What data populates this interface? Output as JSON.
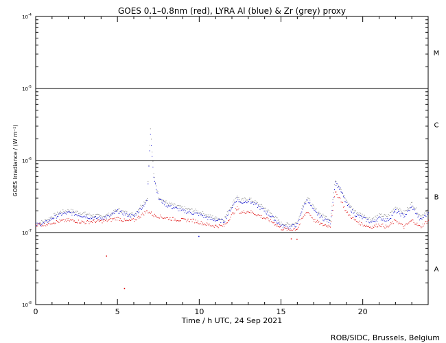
{
  "chart_data": {
    "type": "scatter",
    "title": "GOES 0.1–0.8nm (red), LYRA Al (blue) & Zr (grey) proxy",
    "xlabel": "Time / h UTC, 24 Sep 2021",
    "ylabel": "GOES Irradiance / (W m⁻²)",
    "credit": "ROB/SIDC, Brussels, Belgium",
    "xlim": [
      0,
      24
    ],
    "ylim": [
      1e-08,
      0.0001
    ],
    "yscale": "log",
    "x_ticks": [
      0,
      5,
      10,
      15,
      20
    ],
    "x_tick_labels": [
      "0",
      "5",
      "10",
      "15",
      "20"
    ],
    "y_ticks": [
      1e-08,
      1e-07,
      1e-06,
      1e-05,
      0.0001
    ],
    "y_tick_labels": [
      {
        "base": "10",
        "exp": "-8"
      },
      {
        "base": "10",
        "exp": "-7"
      },
      {
        "base": "10",
        "exp": "-6"
      },
      {
        "base": "10",
        "exp": "-5"
      },
      {
        "base": "10",
        "exp": "-4"
      }
    ],
    "class_thresholds": [
      1e-07,
      1e-06,
      1e-05
    ],
    "class_labels": [
      {
        "label": "A",
        "y": 3.16e-08
      },
      {
        "label": "B",
        "y": 3.16e-07
      },
      {
        "label": "C",
        "y": 3.16e-06
      },
      {
        "label": "M",
        "y": 3.16e-05
      }
    ],
    "colors": {
      "goes": "#dd0000",
      "lyra_al": "#0000cc",
      "lyra_zr": "#888888"
    },
    "series": [
      {
        "key": "goes",
        "x": [
          0.0,
          0.5,
          1.0,
          1.5,
          2.0,
          2.5,
          3.0,
          3.5,
          4.0,
          4.5,
          5.0,
          5.5,
          6.0,
          6.5,
          6.8,
          7.0,
          7.2,
          7.5,
          8.0,
          8.5,
          9.0,
          9.5,
          10.0,
          10.5,
          11.0,
          11.5,
          12.0,
          12.3,
          12.5,
          13.0,
          13.5,
          14.0,
          14.5,
          15.0,
          15.5,
          16.0,
          16.3,
          16.6,
          17.0,
          17.5,
          18.0,
          18.3,
          18.6,
          19.0,
          19.5,
          20.0,
          20.5,
          21.0,
          21.5,
          22.0,
          22.5,
          23.0,
          23.5,
          24.0
        ],
        "y": [
          1.3e-07,
          1.3e-07,
          1.4e-07,
          1.45e-07,
          1.5e-07,
          1.45e-07,
          1.4e-07,
          1.45e-07,
          1.45e-07,
          1.5e-07,
          1.6e-07,
          1.45e-07,
          1.5e-07,
          1.8e-07,
          2e-07,
          1.9e-07,
          1.75e-07,
          1.7e-07,
          1.6e-07,
          1.55e-07,
          1.5e-07,
          1.5e-07,
          1.4e-07,
          1.3e-07,
          1.25e-07,
          1.25e-07,
          1.8e-07,
          2.2e-07,
          1.9e-07,
          2e-07,
          1.8e-07,
          1.6e-07,
          1.4e-07,
          1.15e-07,
          1.1e-07,
          1.15e-07,
          1.6e-07,
          2e-07,
          1.5e-07,
          1.3e-07,
          1.25e-07,
          3.6e-07,
          3e-07,
          1.9e-07,
          1.5e-07,
          1.3e-07,
          1.2e-07,
          1.3e-07,
          1.2e-07,
          1.5e-07,
          1.2e-07,
          1.5e-07,
          1.2e-07,
          1.5e-07
        ]
      },
      {
        "key": "lyra_al",
        "x": [
          0.0,
          0.5,
          1.0,
          1.5,
          2.0,
          2.5,
          3.0,
          3.5,
          4.0,
          4.5,
          5.0,
          5.5,
          6.0,
          6.5,
          6.8,
          7.0,
          7.2,
          7.5,
          8.0,
          8.5,
          9.0,
          9.5,
          10.0,
          10.5,
          11.0,
          11.5,
          12.0,
          12.3,
          12.5,
          13.0,
          13.5,
          14.0,
          14.5,
          15.0,
          15.5,
          16.0,
          16.3,
          16.6,
          17.0,
          17.5,
          18.0,
          18.3,
          18.6,
          19.0,
          19.5,
          20.0,
          20.5,
          21.0,
          21.5,
          22.0,
          22.5,
          23.0,
          23.5,
          24.0
        ],
        "y": [
          1.3e-07,
          1.35e-07,
          1.6e-07,
          1.8e-07,
          1.9e-07,
          1.8e-07,
          1.7e-07,
          1.6e-07,
          1.6e-07,
          1.7e-07,
          2e-07,
          1.8e-07,
          1.7e-07,
          2.3e-07,
          2.8e-07,
          2.4e-06,
          6e-07,
          3e-07,
          2.4e-07,
          2.2e-07,
          2e-07,
          1.9e-07,
          1.8e-07,
          1.6e-07,
          1.5e-07,
          1.45e-07,
          2.3e-07,
          3e-07,
          2.6e-07,
          2.8e-07,
          2.4e-07,
          2e-07,
          1.6e-07,
          1.25e-07,
          1.2e-07,
          1.3e-07,
          2.2e-07,
          2.9e-07,
          2e-07,
          1.6e-07,
          1.4e-07,
          5e-07,
          4e-07,
          2.5e-07,
          1.8e-07,
          1.6e-07,
          1.4e-07,
          1.6e-07,
          1.5e-07,
          2e-07,
          1.7e-07,
          2.3e-07,
          1.5e-07,
          1.9e-07
        ]
      },
      {
        "key": "lyra_zr",
        "x": [
          0.0,
          0.5,
          1.0,
          1.5,
          2.0,
          2.5,
          3.0,
          3.5,
          4.0,
          4.5,
          5.0,
          5.5,
          6.0,
          6.5,
          6.8,
          7.0,
          7.2,
          7.5,
          8.0,
          8.5,
          9.0,
          9.5,
          10.0,
          10.5,
          11.0,
          11.5,
          12.0,
          12.3,
          12.5,
          13.0,
          13.5,
          14.0,
          14.5,
          15.0,
          15.5,
          16.0,
          16.3,
          16.6,
          17.0,
          17.5,
          18.0,
          18.3,
          18.6,
          19.0,
          19.5,
          20.0,
          20.5,
          21.0,
          21.5,
          22.0,
          22.5,
          23.0,
          23.5,
          24.0
        ],
        "y": [
          1.35e-07,
          1.45e-07,
          1.7e-07,
          1.95e-07,
          2.05e-07,
          1.95e-07,
          1.85e-07,
          1.75e-07,
          1.7e-07,
          1.8e-07,
          2.1e-07,
          1.9e-07,
          1.8e-07,
          2.5e-07,
          3e-07,
          2.8e-06,
          6.5e-07,
          3.2e-07,
          2.6e-07,
          2.4e-07,
          2.2e-07,
          2.1e-07,
          1.95e-07,
          1.75e-07,
          1.6e-07,
          1.55e-07,
          2.5e-07,
          3.3e-07,
          2.8e-07,
          3e-07,
          2.6e-07,
          2.2e-07,
          1.75e-07,
          1.35e-07,
          1.3e-07,
          1.4e-07,
          2.4e-07,
          3.1e-07,
          2.2e-07,
          1.75e-07,
          1.55e-07,
          5.5e-07,
          4.3e-07,
          2.7e-07,
          2e-07,
          1.75e-07,
          1.55e-07,
          1.75e-07,
          1.7e-07,
          2.3e-07,
          1.9e-07,
          2.6e-07,
          1.7e-07,
          2.1e-07
        ]
      }
    ],
    "outliers": [
      {
        "series": "goes",
        "x": 4.3,
        "y": 4.8e-08
      },
      {
        "series": "goes",
        "x": 5.4,
        "y": 1.7e-08
      },
      {
        "series": "lyra_al",
        "x": 9.95,
        "y": 9e-08
      },
      {
        "series": "goes",
        "x": 15.6,
        "y": 8.3e-08
      },
      {
        "series": "goes",
        "x": 15.95,
        "y": 8.2e-08
      }
    ]
  }
}
